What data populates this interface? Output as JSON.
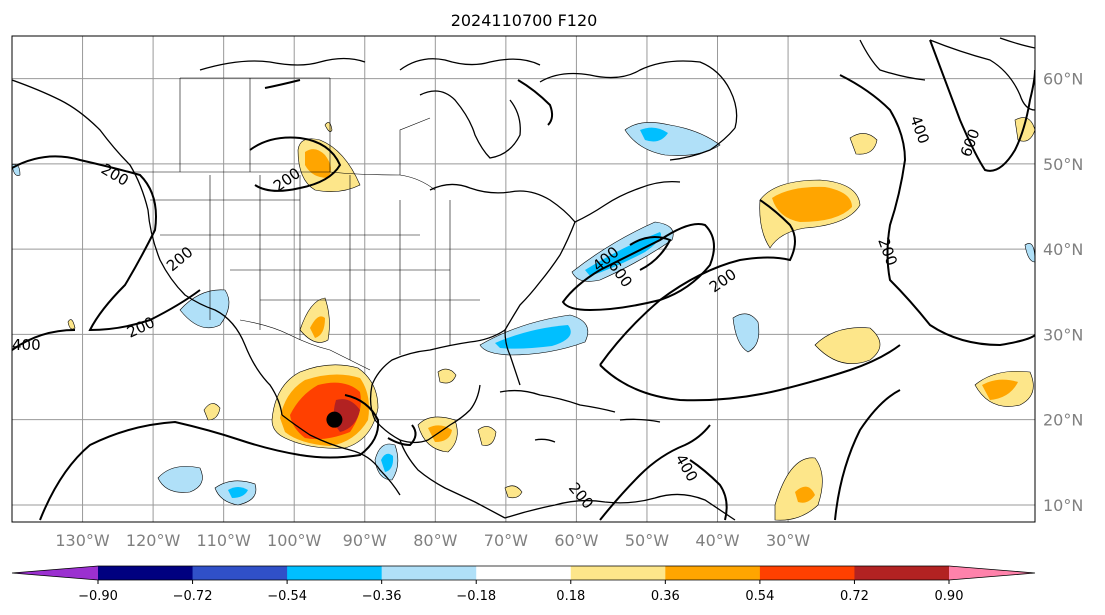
{
  "title": "2024110700 F120",
  "map": {
    "projection": "PlateCarree",
    "lon_range": [
      -140,
      5
    ],
    "lat_range": [
      8,
      65
    ],
    "lon_ticks": [
      {
        "lon": -130,
        "label": "130°W"
      },
      {
        "lon": -120,
        "label": "120°W"
      },
      {
        "lon": -110,
        "label": "110°W"
      },
      {
        "lon": -100,
        "label": "100°W"
      },
      {
        "lon": -90,
        "label": "90°W"
      },
      {
        "lon": -80,
        "label": "80°W"
      },
      {
        "lon": -70,
        "label": "70°W"
      },
      {
        "lon": -60,
        "label": "60°W"
      },
      {
        "lon": -50,
        "label": "50°W"
      },
      {
        "lon": -40,
        "label": "40°W"
      },
      {
        "lon": -30,
        "label": "30°W"
      }
    ],
    "lat_ticks": [
      {
        "lat": 60,
        "label": "60°N"
      },
      {
        "lat": 50,
        "label": "50°N"
      },
      {
        "lat": 40,
        "label": "40°N"
      },
      {
        "lat": 30,
        "label": "30°N"
      },
      {
        "lat": 20,
        "label": "20°N"
      },
      {
        "lat": 10,
        "label": "10°N"
      }
    ],
    "gridlines": true,
    "contour_labels": [
      "200",
      "400",
      "600"
    ],
    "storm_marker_lon_lat": [
      -94.3,
      20.0
    ]
  },
  "colorbar": {
    "levels": [
      "−0.90",
      "−0.72",
      "−0.54",
      "−0.36",
      "−0.18",
      "0.18",
      "0.36",
      "0.54",
      "0.72",
      "0.90"
    ],
    "colors": [
      "#9b30d0",
      "#000080",
      "#3050c8",
      "#00bfff",
      "#b0e0f8",
      "#ffffff",
      "#fde68a",
      "#ffa500",
      "#ff4000",
      "#b22222",
      "#ff82ab"
    ],
    "extend": "both"
  }
}
